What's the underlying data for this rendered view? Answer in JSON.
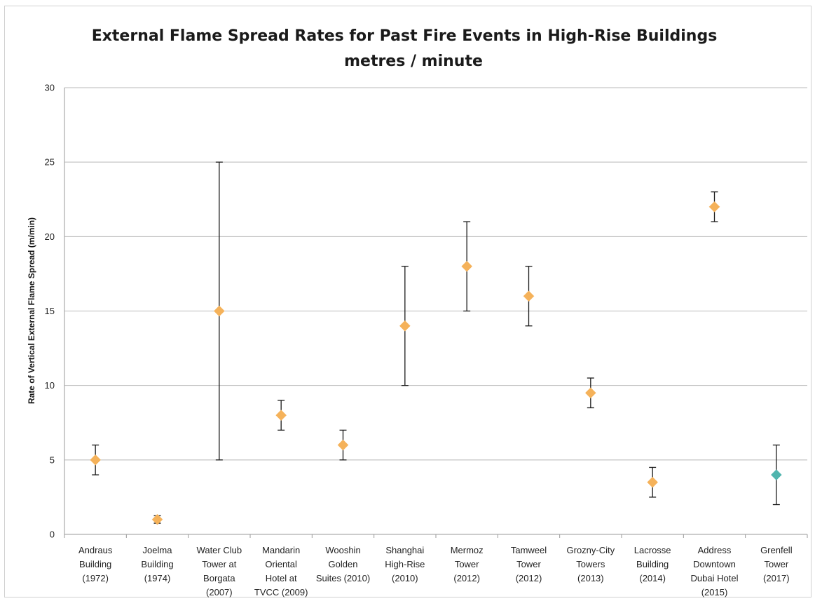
{
  "chart_data": {
    "type": "scatter",
    "title": "External Flame Spread Rates for Past Fire Events in High-Rise Buildings",
    "subtitle": "metres / minute",
    "ylabel": "Rate of Vertical External Flame Spread (m/min)",
    "xlabel": "",
    "ylim": [
      0,
      30
    ],
    "yticks": [
      0,
      5,
      10,
      15,
      20,
      25,
      30
    ],
    "grid": true,
    "error_bars": true,
    "colors": {
      "default": "#f5b25a",
      "highlight": "#4fb5ae",
      "error_bar": "#1a1a1a",
      "grid": "#b8b8b8"
    },
    "categories": [
      {
        "lines": [
          "Andraus",
          "Building",
          "(1972)"
        ],
        "value": 5,
        "low": 4,
        "high": 6,
        "color": "#f5b25a"
      },
      {
        "lines": [
          "Joelma",
          "Building",
          "(1974)"
        ],
        "value": 1,
        "low": 0.75,
        "high": 1.25,
        "color": "#f5b25a"
      },
      {
        "lines": [
          "Water Club",
          "Tower at",
          "Borgata",
          "(2007)"
        ],
        "value": 15,
        "low": 5,
        "high": 25,
        "color": "#f5b25a"
      },
      {
        "lines": [
          "Mandarin",
          "Oriental",
          "Hotel at",
          "TVCC (2009)"
        ],
        "value": 8,
        "low": 7,
        "high": 9,
        "color": "#f5b25a"
      },
      {
        "lines": [
          "Wooshin",
          "Golden",
          "Suites (2010)"
        ],
        "value": 6,
        "low": 5,
        "high": 7,
        "color": "#f5b25a"
      },
      {
        "lines": [
          "Shanghai",
          "High-Rise",
          "(2010)"
        ],
        "value": 14,
        "low": 10,
        "high": 18,
        "color": "#f5b25a"
      },
      {
        "lines": [
          "Mermoz",
          "Tower",
          "(2012)"
        ],
        "value": 18,
        "low": 15,
        "high": 21,
        "color": "#f5b25a"
      },
      {
        "lines": [
          "Tamweel",
          "Tower",
          "(2012)"
        ],
        "value": 16,
        "low": 14,
        "high": 18,
        "color": "#f5b25a"
      },
      {
        "lines": [
          "Grozny-City",
          "Towers",
          "(2013)"
        ],
        "value": 9.5,
        "low": 8.5,
        "high": 10.5,
        "color": "#f5b25a"
      },
      {
        "lines": [
          "Lacrosse",
          "Building",
          "(2014)"
        ],
        "value": 3.5,
        "low": 2.5,
        "high": 4.5,
        "color": "#f5b25a"
      },
      {
        "lines": [
          "Address",
          "Downtown",
          "Dubai Hotel",
          "(2015)"
        ],
        "value": 22,
        "low": 21,
        "high": 23,
        "color": "#f5b25a"
      },
      {
        "lines": [
          "Grenfell",
          "Tower",
          "(2017)"
        ],
        "value": 4,
        "low": 2,
        "high": 6,
        "color": "#4fb5ae"
      }
    ]
  }
}
